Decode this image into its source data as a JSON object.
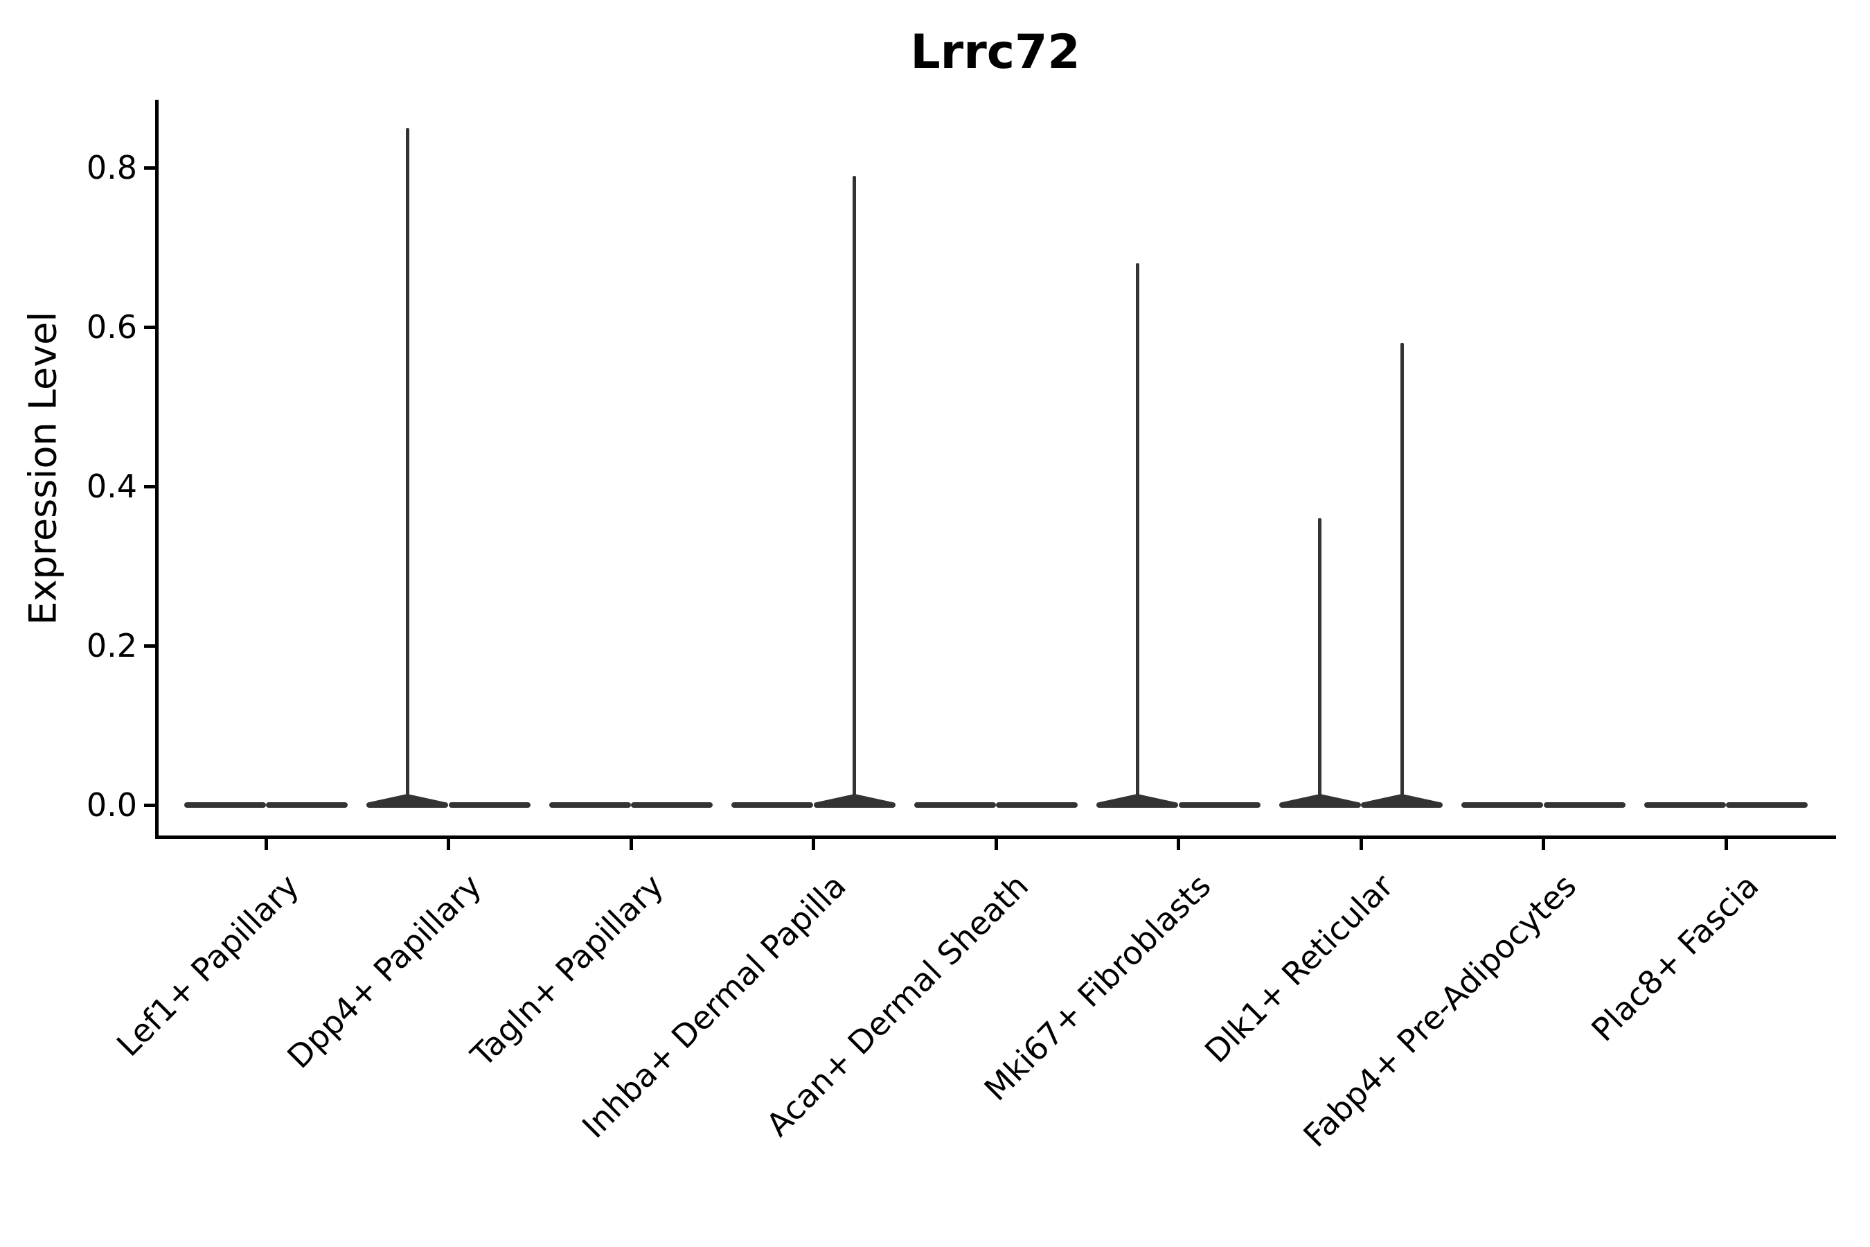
{
  "chart_data": {
    "type": "violin",
    "title": "Lrrc72",
    "ylabel": "Expression Level",
    "xlabel": "",
    "yticks": [
      "0.0",
      "0.2",
      "0.4",
      "0.6",
      "0.8"
    ],
    "ytick_values": [
      0.0,
      0.2,
      0.4,
      0.6,
      0.8
    ],
    "ylim": [
      -0.04,
      0.89
    ],
    "grid": false,
    "legend": false,
    "violins_per_category": 2,
    "categories": [
      {
        "label": "Lef1+ Papillary",
        "group1_max": 0,
        "group2_max": 0
      },
      {
        "label": "Dpp4+ Papillary",
        "group1_max": 0.85,
        "group2_max": 0
      },
      {
        "label": "Tagln+ Papillary",
        "group1_max": 0,
        "group2_max": 0
      },
      {
        "label": "Inhba+ Dermal Papilla",
        "group1_max": 0,
        "group2_max": 0.79
      },
      {
        "label": "Acan+ Dermal Sheath",
        "group1_max": 0,
        "group2_max": 0
      },
      {
        "label": "Mki67+ Fibroblasts",
        "group1_max": 0.68,
        "group2_max": 0
      },
      {
        "label": "Dlk1+ Reticular",
        "group1_max": 0.36,
        "group2_max": 0.58
      },
      {
        "label": "Fabp4+ Pre-Adipocytes",
        "group1_max": 0,
        "group2_max": 0
      },
      {
        "label": "Plac8+ Fascia",
        "group1_max": 0,
        "group2_max": 0
      }
    ]
  },
  "colors": {
    "violin": "#333333",
    "axis": "#000000",
    "background": "#ffffff"
  }
}
